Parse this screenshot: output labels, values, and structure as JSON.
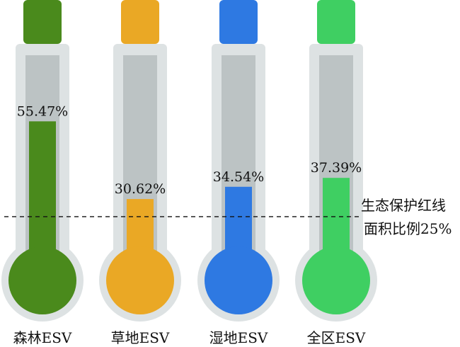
{
  "chart_data": {
    "type": "bar",
    "style": "thermometer",
    "categories": [
      "森林ESV",
      "草地ESV",
      "湿地ESV",
      "全区ESV"
    ],
    "values": [
      55.47,
      30.62,
      34.54,
      37.39
    ],
    "value_labels": [
      "55.47%",
      "30.62%",
      "34.54%",
      "37.39%"
    ],
    "colors": [
      "#4a8a1c",
      "#eaa825",
      "#2e79e2",
      "#3fcf62"
    ],
    "ylim": [
      0,
      100
    ],
    "grid": false,
    "reference_line": {
      "value": 25,
      "label_lines": [
        "生态保护红线",
        "面积比例25%"
      ],
      "style": "dashed"
    }
  }
}
